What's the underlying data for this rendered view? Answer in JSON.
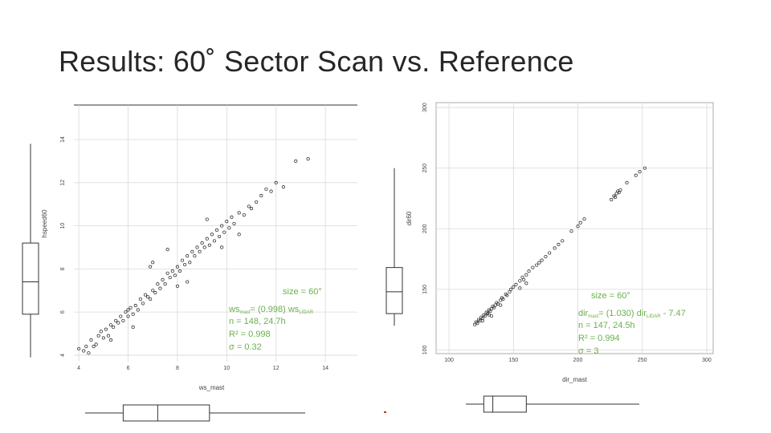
{
  "slide": {
    "title": "Results: 60˚ Sector Scan vs. Reference"
  },
  "colors": {
    "annotation": "#6ab04c",
    "points": "#222222",
    "grid": "#d9d9d9",
    "axis": "#555555"
  },
  "chart_data": [
    {
      "type": "scatter",
      "title": "",
      "xlabel": "ws_mast",
      "ylabel": "hspeed60",
      "xlim": [
        3.8,
        15.3
      ],
      "ylim": [
        3.7,
        15.6
      ],
      "xticks": [
        "4",
        "6",
        "8",
        "10",
        "12",
        "14"
      ],
      "xtick_values": [
        4,
        6,
        8,
        10,
        12,
        14
      ],
      "yticks": [
        "4",
        "6",
        "8",
        "10",
        "12",
        "14"
      ],
      "ytick_values": [
        4,
        6,
        8,
        10,
        12,
        14
      ],
      "grid": true,
      "fit": {
        "slope": 0.998,
        "intercept": 0
      },
      "annotation": {
        "size": "size = 60°",
        "eq_pre": "ws",
        "eq_sub1": "mast",
        "eq_mid": "= (0.998) ws",
        "eq_sub2": "LIDAR",
        "eq_post": "",
        "n": "n = 148, 24.7h",
        "r2": "R² = 0.998",
        "sigma": "σ = 0.32"
      },
      "marginal_boxplots": {
        "y": {
          "min": 3.9,
          "q1": 5.9,
          "median": 7.4,
          "q3": 9.2,
          "max": 13.8
        },
        "x": {
          "min": 4.0,
          "q1": 5.8,
          "median": 7.2,
          "q3": 9.3,
          "max": 13.3
        }
      },
      "points": [
        [
          4.0,
          4.3
        ],
        [
          4.2,
          4.2
        ],
        [
          4.3,
          4.4
        ],
        [
          4.4,
          4.1
        ],
        [
          4.5,
          4.7
        ],
        [
          4.6,
          4.4
        ],
        [
          4.7,
          4.5
        ],
        [
          4.8,
          4.9
        ],
        [
          4.9,
          5.1
        ],
        [
          5.0,
          4.8
        ],
        [
          5.1,
          5.2
        ],
        [
          5.2,
          4.9
        ],
        [
          5.3,
          5.4
        ],
        [
          5.4,
          5.3
        ],
        [
          5.5,
          5.6
        ],
        [
          5.6,
          5.5
        ],
        [
          5.7,
          5.8
        ],
        [
          5.8,
          5.6
        ],
        [
          5.9,
          6.0
        ],
        [
          6.0,
          5.8
        ],
        [
          6.0,
          6.1
        ],
        [
          6.1,
          6.2
        ],
        [
          6.2,
          5.9
        ],
        [
          6.3,
          6.3
        ],
        [
          6.4,
          6.1
        ],
        [
          6.5,
          6.6
        ],
        [
          6.6,
          6.4
        ],
        [
          6.7,
          6.8
        ],
        [
          6.8,
          6.7
        ],
        [
          6.9,
          6.6
        ],
        [
          7.0,
          7.0
        ],
        [
          7.1,
          6.9
        ],
        [
          7.2,
          7.3
        ],
        [
          7.3,
          7.1
        ],
        [
          7.4,
          7.5
        ],
        [
          7.5,
          7.3
        ],
        [
          7.6,
          7.8
        ],
        [
          7.7,
          7.6
        ],
        [
          7.8,
          7.9
        ],
        [
          7.9,
          7.7
        ],
        [
          8.0,
          8.1
        ],
        [
          8.1,
          7.9
        ],
        [
          8.2,
          8.4
        ],
        [
          8.3,
          8.2
        ],
        [
          8.4,
          8.6
        ],
        [
          8.5,
          8.3
        ],
        [
          8.6,
          8.8
        ],
        [
          8.7,
          8.6
        ],
        [
          8.8,
          9.0
        ],
        [
          8.9,
          8.8
        ],
        [
          9.0,
          9.2
        ],
        [
          9.1,
          9.0
        ],
        [
          9.2,
          9.4
        ],
        [
          9.3,
          9.1
        ],
        [
          9.4,
          9.6
        ],
        [
          9.5,
          9.3
        ],
        [
          9.6,
          9.8
        ],
        [
          9.7,
          9.5
        ],
        [
          9.8,
          10.0
        ],
        [
          9.9,
          9.7
        ],
        [
          10.0,
          10.2
        ],
        [
          10.1,
          9.9
        ],
        [
          10.2,
          10.4
        ],
        [
          10.3,
          10.1
        ],
        [
          10.5,
          10.6
        ],
        [
          10.7,
          10.5
        ],
        [
          10.9,
          10.9
        ],
        [
          11.0,
          10.8
        ],
        [
          11.2,
          11.1
        ],
        [
          11.4,
          11.4
        ],
        [
          11.6,
          11.7
        ],
        [
          11.8,
          11.6
        ],
        [
          12.0,
          12.0
        ],
        [
          12.3,
          11.8
        ],
        [
          12.8,
          13.0
        ],
        [
          13.3,
          13.1
        ],
        [
          7.0,
          8.3
        ],
        [
          6.2,
          5.3
        ],
        [
          8.4,
          7.4
        ],
        [
          9.8,
          9.0
        ],
        [
          10.5,
          9.6
        ],
        [
          6.9,
          8.1
        ],
        [
          5.3,
          4.7
        ],
        [
          8.0,
          7.2
        ],
        [
          9.2,
          10.3
        ],
        [
          7.6,
          8.9
        ]
      ]
    },
    {
      "type": "scatter",
      "title": "",
      "xlabel": "dir_mast",
      "ylabel": "dir60",
      "xlim": [
        90,
        305
      ],
      "ylim": [
        97,
        304
      ],
      "xticks": [
        "100",
        "150",
        "200",
        "250",
        "300"
      ],
      "xtick_values": [
        100,
        150,
        200,
        250,
        300
      ],
      "yticks": [
        "100",
        "150",
        "200",
        "250",
        "300"
      ],
      "ytick_values": [
        100,
        150,
        200,
        250,
        300
      ],
      "grid": true,
      "fit": {
        "slope": 1.03,
        "intercept": -7.47
      },
      "annotation": {
        "size": "size = 60°",
        "eq_pre": "dir",
        "eq_sub1": "mast",
        "eq_mid": "= (1.030) dir",
        "eq_sub2": "LIDAR",
        "eq_post": " - 7.47",
        "n": "n = 147, 24.5h",
        "r2": "R² = 0.994",
        "sigma": "σ = 3"
      },
      "marginal_boxplots": {
        "y": {
          "min": 120,
          "q1": 130,
          "median": 148,
          "q3": 168,
          "max": 250
        },
        "x": {
          "min": 120,
          "q1": 127,
          "median": 134,
          "q3": 160,
          "max": 252
        }
      },
      "points": [
        [
          120,
          121
        ],
        [
          121,
          123
        ],
        [
          122,
          122
        ],
        [
          123,
          125
        ],
        [
          124,
          124
        ],
        [
          125,
          127
        ],
        [
          126,
          126
        ],
        [
          127,
          129
        ],
        [
          128,
          128
        ],
        [
          129,
          131
        ],
        [
          130,
          130
        ],
        [
          131,
          133
        ],
        [
          132,
          132
        ],
        [
          133,
          134
        ],
        [
          134,
          136
        ],
        [
          135,
          135
        ],
        [
          136,
          137
        ],
        [
          137,
          139
        ],
        [
          138,
          138
        ],
        [
          140,
          141
        ],
        [
          141,
          143
        ],
        [
          142,
          142
        ],
        [
          144,
          146
        ],
        [
          145,
          145
        ],
        [
          147,
          148
        ],
        [
          148,
          150
        ],
        [
          150,
          152
        ],
        [
          152,
          154
        ],
        [
          155,
          157
        ],
        [
          157,
          160
        ],
        [
          158,
          158
        ],
        [
          160,
          162
        ],
        [
          162,
          165
        ],
        [
          165,
          168
        ],
        [
          168,
          170
        ],
        [
          170,
          172
        ],
        [
          172,
          174
        ],
        [
          175,
          177
        ],
        [
          178,
          180
        ],
        [
          182,
          184
        ],
        [
          185,
          187
        ],
        [
          188,
          190
        ],
        [
          195,
          198
        ],
        [
          200,
          202
        ],
        [
          202,
          205
        ],
        [
          205,
          208
        ],
        [
          226,
          224
        ],
        [
          228,
          227
        ],
        [
          229,
          226
        ],
        [
          230,
          229
        ],
        [
          231,
          231
        ],
        [
          232,
          230
        ],
        [
          233,
          232
        ],
        [
          238,
          238
        ],
        [
          245,
          244
        ],
        [
          248,
          247
        ],
        [
          252,
          250
        ],
        [
          155,
          151
        ],
        [
          160,
          155
        ],
        [
          133,
          128
        ],
        [
          140,
          137
        ],
        [
          126,
          124
        ],
        [
          131,
          129
        ]
      ]
    }
  ]
}
